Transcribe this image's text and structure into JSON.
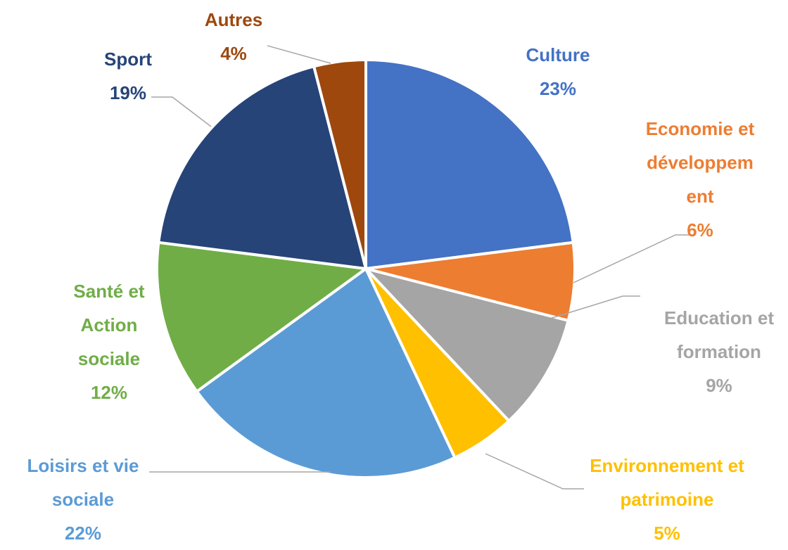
{
  "chart_data": {
    "type": "pie",
    "categories": [
      "Culture",
      "Economie et développement",
      "Education et formation",
      "Environnement et patrimoine",
      "Loisirs et vie sociale",
      "Santé et Action sociale",
      "Sport",
      "Autres"
    ],
    "values": [
      23,
      6,
      9,
      5,
      22,
      12,
      19,
      4
    ],
    "value_labels": [
      "23%",
      "6%",
      "9%",
      "5%",
      "22%",
      "12%",
      "19%",
      "4%"
    ],
    "colors": [
      "#4472c4",
      "#ed7d31",
      "#a5a5a5",
      "#ffc000",
      "#5b9bd5",
      "#70ad47",
      "#264478",
      "#9e480e"
    ]
  }
}
